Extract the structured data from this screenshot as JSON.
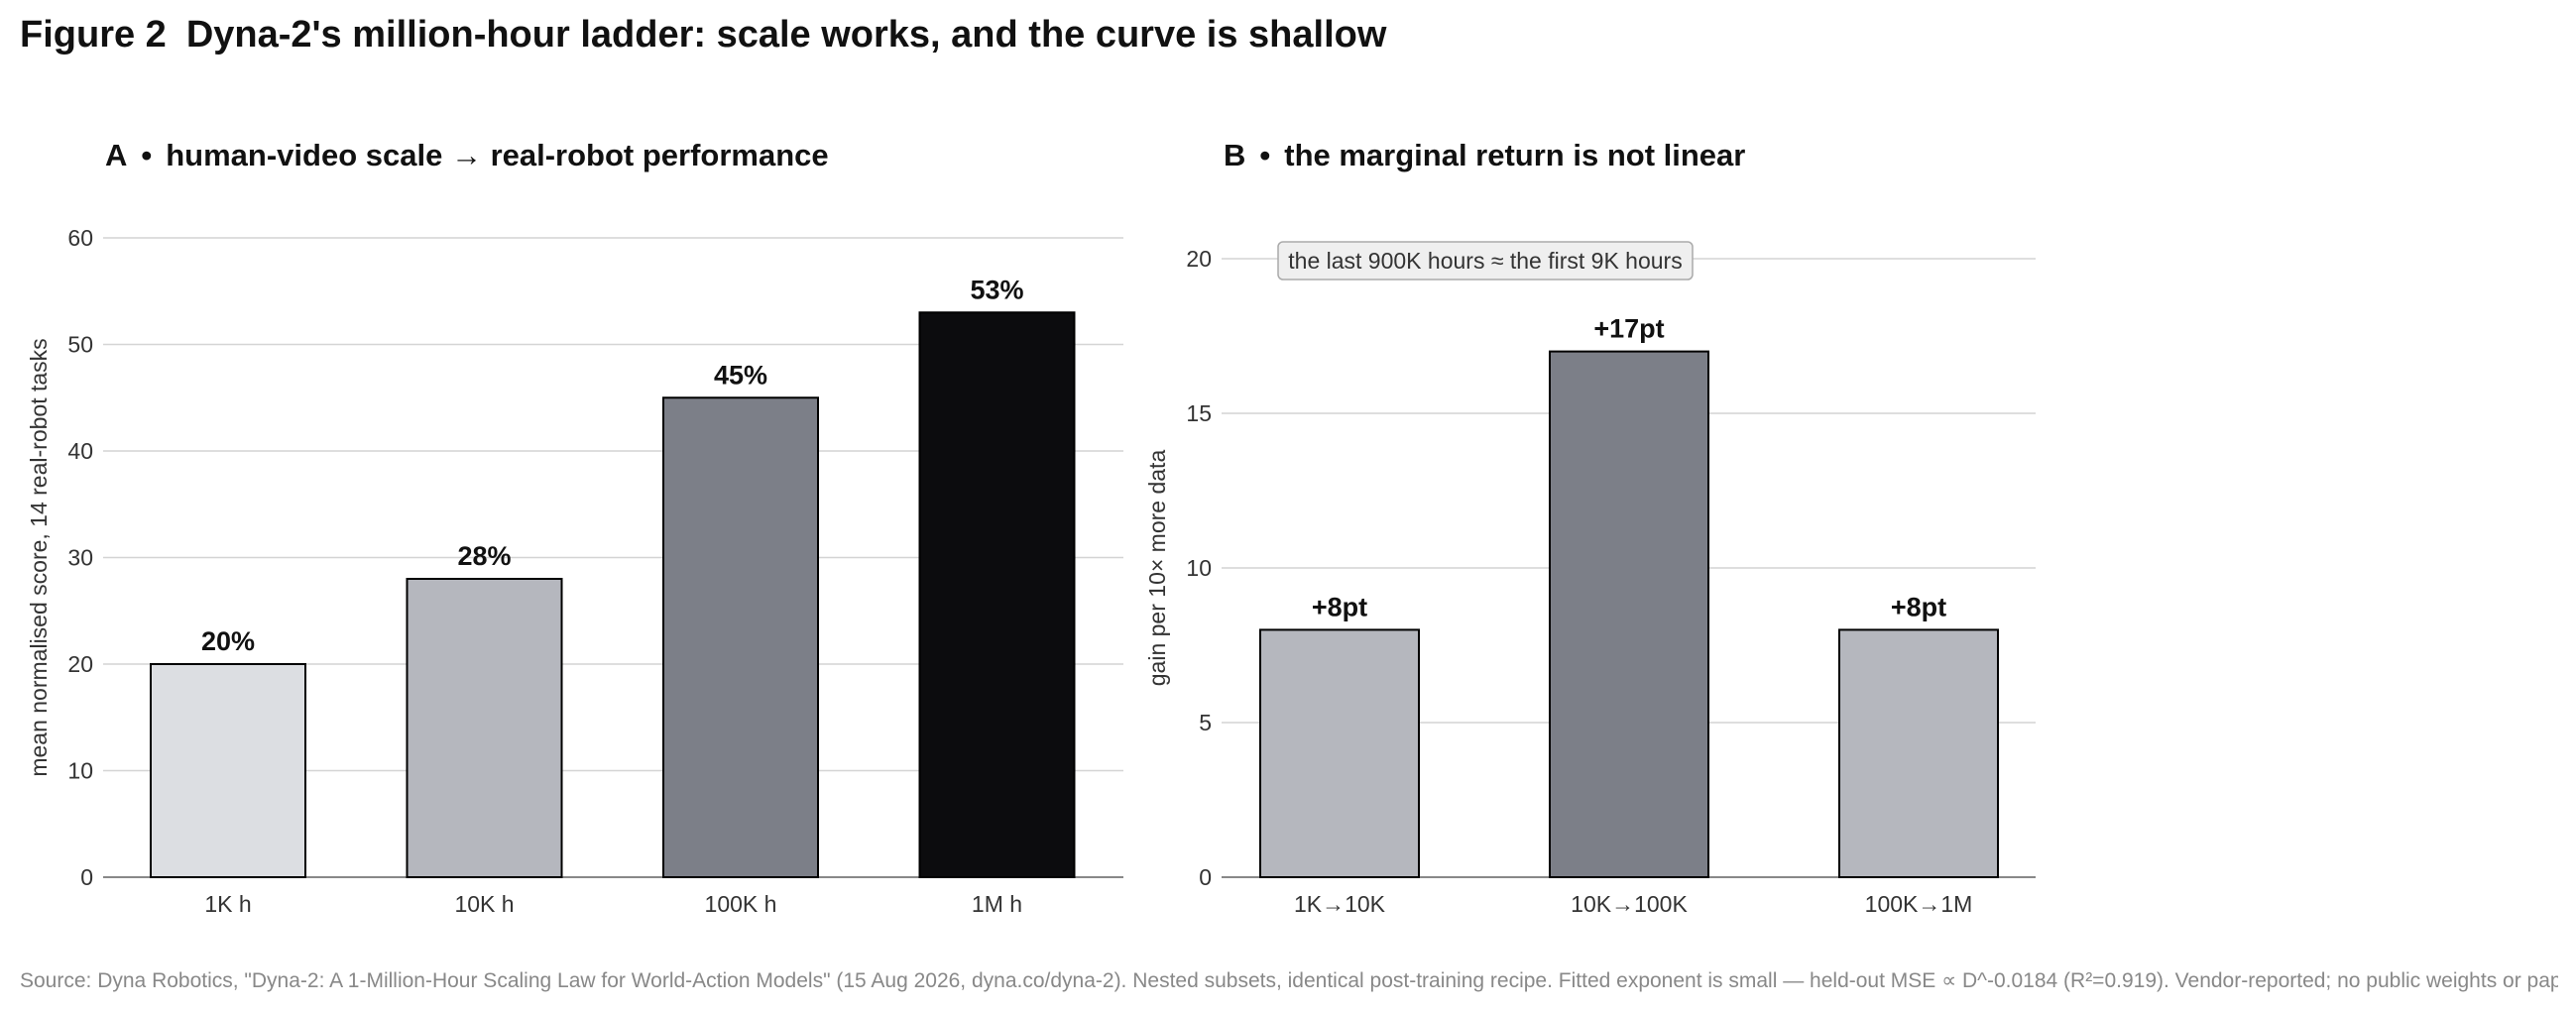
{
  "figure": {
    "number": "Figure 2",
    "title": "Dyna-2's million-hour ladder: scale works, and the curve is shallow"
  },
  "source": "Source: Dyna Robotics, \"Dyna-2: A 1-Million-Hour Scaling Law for World-Action Models\" (15 Aug 2026, dyna.co/dyna-2). Nested subsets, identical post-training recipe. Fitted exponent is small — held-out MSE ∝ D^-0.0184 (R²=0.919). Vendor-reported; no public weights or paper.",
  "chart_data": [
    {
      "id": "A",
      "type": "bar",
      "panel_letter": "A",
      "separator": "•",
      "title": "human-video scale → real-robot performance",
      "xlabel": "",
      "ylabel": "mean normalised score, 14 real-robot tasks",
      "ylim": [
        0,
        60
      ],
      "yticks": [
        0,
        10,
        20,
        30,
        40,
        50,
        60
      ],
      "grid": true,
      "categories": [
        "1K h",
        "10K h",
        "100K h",
        "1M h"
      ],
      "values": [
        20,
        28,
        45,
        53
      ],
      "value_labels": [
        "20%",
        "28%",
        "45%",
        "53%"
      ],
      "colors": [
        "#dcdee2",
        "#b5b7be",
        "#7c7f88",
        "#0c0c0e"
      ]
    },
    {
      "id": "B",
      "type": "bar",
      "panel_letter": "B",
      "separator": "•",
      "title": "the marginal return is not linear",
      "xlabel": "",
      "ylabel": "gain per 10× more data",
      "ylim": [
        0,
        20
      ],
      "yticks": [
        0,
        5,
        10,
        15,
        20
      ],
      "grid": true,
      "categories": [
        "1K→10K",
        "10K→100K",
        "100K→1M"
      ],
      "values": [
        8,
        17,
        8
      ],
      "value_labels": [
        "+8pt",
        "+17pt",
        "+8pt"
      ],
      "colors": [
        "#b5b7be",
        "#7c7f88",
        "#b5b7be"
      ],
      "annotation": "the last 900K hours ≈ the first 9K hours"
    }
  ]
}
